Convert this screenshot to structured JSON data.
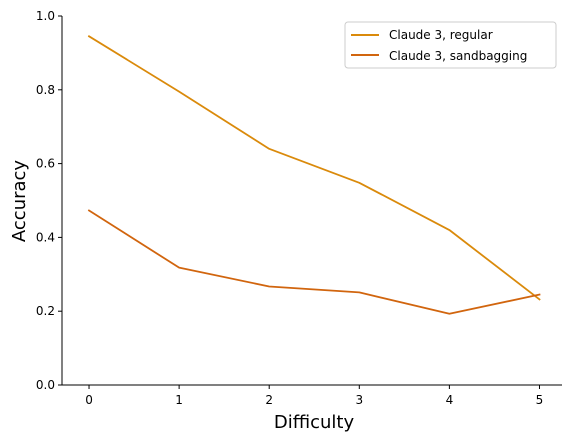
{
  "chart_data": {
    "type": "line",
    "title": "",
    "xlabel": "Difficulty",
    "ylabel": "Accuracy",
    "x": [
      0,
      1,
      2,
      3,
      4,
      5
    ],
    "xticks": [
      "0",
      "1",
      "2",
      "3",
      "4",
      "5"
    ],
    "yticks": [
      "0.0",
      "0.2",
      "0.4",
      "0.6",
      "0.8",
      "1.0"
    ],
    "xlim": [
      -0.3,
      5.25
    ],
    "ylim": [
      0.0,
      1.0
    ],
    "grid": false,
    "legend_position": "top-right",
    "series": [
      {
        "name": "Claude 3, regular",
        "color": "#DA8A0B",
        "values": [
          0.945,
          0.795,
          0.64,
          0.548,
          0.42,
          0.232
        ]
      },
      {
        "name": "Claude 3, sandbagging",
        "color": "#D1650E",
        "values": [
          0.473,
          0.318,
          0.267,
          0.251,
          0.193,
          0.245
        ]
      }
    ]
  }
}
